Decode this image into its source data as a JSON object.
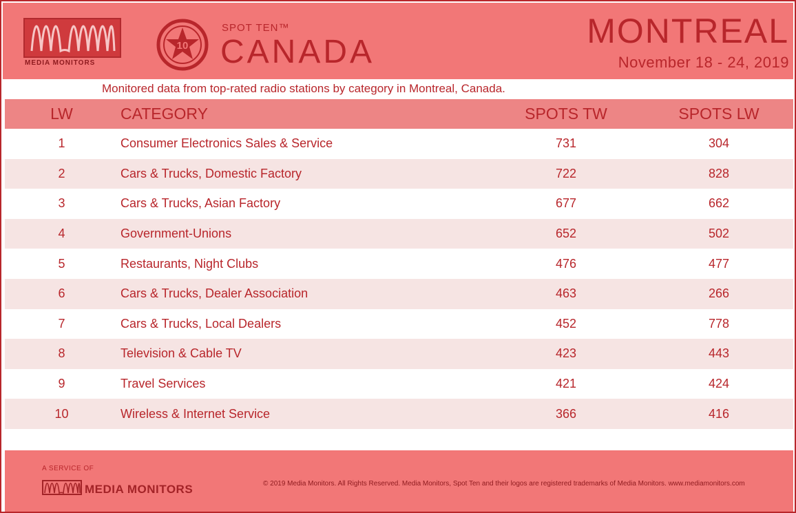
{
  "colors": {
    "accent": "#b8262b",
    "header_bg": "#f27777",
    "stripe": "#f6e4e3"
  },
  "brand": {
    "logo_text": "MEDIA MONITORS",
    "spot_ten": "SPOT TEN™",
    "spot_number": "10",
    "country": "CANADA"
  },
  "header": {
    "city": "MONTREAL",
    "dates": "November 18 - 24, 2019"
  },
  "subtitle": "Monitored data from top-rated radio stations by category in Montreal, Canada.",
  "table": {
    "headers": {
      "lw": "LW",
      "category": "CATEGORY",
      "spots_tw": "SPOTS TW",
      "spots_lw": "SPOTS LW"
    },
    "rows": [
      {
        "lw": "1",
        "category": "Consumer Electronics Sales & Service",
        "spots_tw": "731",
        "spots_lw": "304"
      },
      {
        "lw": "2",
        "category": "Cars & Trucks, Domestic Factory",
        "spots_tw": "722",
        "spots_lw": "828"
      },
      {
        "lw": "3",
        "category": "Cars & Trucks, Asian Factory",
        "spots_tw": "677",
        "spots_lw": "662"
      },
      {
        "lw": "4",
        "category": "Government-Unions",
        "spots_tw": "652",
        "spots_lw": "502"
      },
      {
        "lw": "5",
        "category": "Restaurants, Night Clubs",
        "spots_tw": "476",
        "spots_lw": "477"
      },
      {
        "lw": "6",
        "category": "Cars & Trucks, Dealer Association",
        "spots_tw": "463",
        "spots_lw": "266"
      },
      {
        "lw": "7",
        "category": "Cars & Trucks, Local Dealers",
        "spots_tw": "452",
        "spots_lw": "778"
      },
      {
        "lw": "8",
        "category": "Television & Cable TV",
        "spots_tw": "423",
        "spots_lw": "443"
      },
      {
        "lw": "9",
        "category": "Travel Services",
        "spots_tw": "421",
        "spots_lw": "424"
      },
      {
        "lw": "10",
        "category": "Wireless & Internet Service",
        "spots_tw": "366",
        "spots_lw": "416"
      }
    ]
  },
  "footer": {
    "service_of": "A SERVICE OF",
    "logo_text": "MEDIA MONITORS",
    "copyright": "© 2019 Media Monitors. All Rights Reserved. Media Monitors, Spot Ten and their logos are registered trademarks of Media Monitors. www.mediamonitors.com"
  }
}
